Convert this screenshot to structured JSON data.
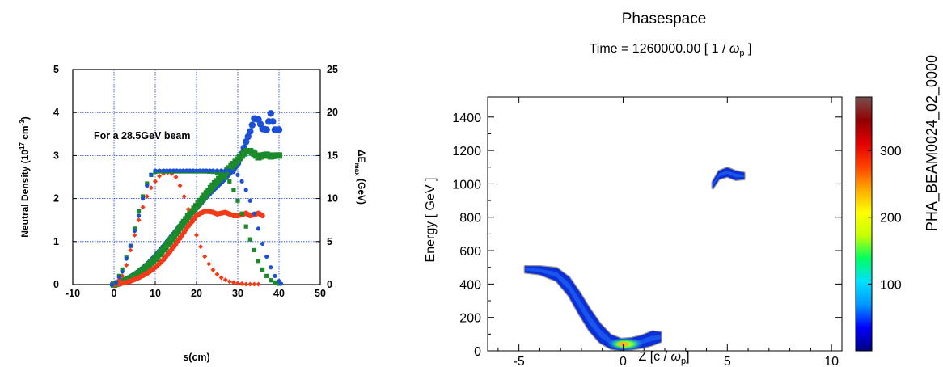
{
  "chart_data": [
    {
      "type": "scatter",
      "annotation": "For a 28.5GeV beam",
      "xlabel": "s(cm)",
      "ylabel_left": {
        "base": "Neutral Density (10",
        "sup": "17",
        "mid": " cm",
        "sup2": "-3",
        "end": ")"
      },
      "ylabel_right": {
        "base": "ΔE",
        "sub": "max",
        "end": " (GeV)"
      },
      "xlim": [
        -10,
        50
      ],
      "ylim_left": [
        0,
        5
      ],
      "ylim_right": [
        0,
        25
      ],
      "grid": true,
      "x_ticks": [
        "-10",
        "0",
        "10",
        "20",
        "30",
        "40",
        "50"
      ],
      "y_ticks_left": [
        "0",
        "1",
        "2",
        "3",
        "4",
        "5"
      ],
      "y_ticks_right": [
        "0",
        "5",
        "10",
        "15",
        "20",
        "25"
      ],
      "colors": {
        "blue": "#1a4fd6",
        "green": "#1a8a2a",
        "red": "#f23a1a"
      },
      "series": [
        {
          "axis": "left",
          "color": "blue",
          "marker": "circle-small",
          "x": [
            -0.5,
            0.5,
            2,
            4,
            6,
            7,
            8,
            9,
            10,
            12,
            16,
            20,
            24,
            26,
            28,
            29,
            30,
            31,
            32,
            33,
            34,
            35,
            36,
            37,
            38,
            39,
            40,
            40.5
          ],
          "y": [
            0,
            0.05,
            0.3,
            0.9,
            1.6,
            2.0,
            2.3,
            2.55,
            2.65,
            2.65,
            2.65,
            2.65,
            2.65,
            2.65,
            2.65,
            2.62,
            2.55,
            2.4,
            2.2,
            1.95,
            1.65,
            1.3,
            0.95,
            0.65,
            0.4,
            0.2,
            0.08,
            0.02
          ]
        },
        {
          "axis": "left",
          "color": "green",
          "marker": "square-small",
          "x": [
            -0.5,
            0.5,
            2,
            4,
            5,
            6,
            7,
            8,
            9,
            10,
            11,
            12,
            14,
            16,
            18,
            20,
            22,
            24,
            26,
            28,
            29,
            30,
            31,
            32,
            33,
            34,
            35,
            36,
            37,
            38,
            39,
            40
          ],
          "y": [
            0,
            0.05,
            0.35,
            0.9,
            1.3,
            1.7,
            2.05,
            2.35,
            2.55,
            2.62,
            2.63,
            2.63,
            2.63,
            2.63,
            2.63,
            2.63,
            2.63,
            2.62,
            2.58,
            2.4,
            2.2,
            1.95,
            1.65,
            1.35,
            1.05,
            0.8,
            0.55,
            0.35,
            0.2,
            0.1,
            0.05,
            0.02
          ]
        },
        {
          "axis": "left",
          "color": "red",
          "marker": "diamond-small",
          "x": [
            -0.5,
            0.5,
            2,
            3,
            4,
            5,
            6,
            7,
            8,
            9,
            10,
            11,
            12,
            13,
            14,
            15,
            16,
            17,
            18,
            19,
            20,
            21,
            22,
            23,
            24,
            25,
            26,
            27,
            28,
            29,
            30,
            31,
            32,
            33,
            34,
            35
          ],
          "y": [
            0,
            0.03,
            0.2,
            0.45,
            0.8,
            1.15,
            1.5,
            1.8,
            2.05,
            2.25,
            2.4,
            2.52,
            2.58,
            2.6,
            2.58,
            2.5,
            2.3,
            2.05,
            1.75,
            1.45,
            1.15,
            0.88,
            0.65,
            0.48,
            0.34,
            0.24,
            0.16,
            0.11,
            0.07,
            0.05,
            0.03,
            0.02,
            0.01,
            0.01,
            0.01,
            0.01
          ]
        },
        {
          "axis": "right",
          "color": "blue",
          "marker": "circle-large",
          "x": [
            0,
            2,
            4,
            6,
            8,
            10,
            12,
            14,
            16,
            18,
            20,
            22,
            24,
            26,
            28,
            29,
            30,
            31,
            32,
            33,
            34,
            35,
            36,
            37,
            38,
            39,
            40
          ],
          "y": [
            0,
            0.3,
            0.8,
            1.4,
            2.2,
            3.2,
            4.3,
            5.5,
            6.7,
            7.9,
            9.0,
            10.1,
            11.1,
            12.0,
            13.0,
            13.5,
            14.1,
            15.2,
            16.6,
            17.8,
            19.3,
            19.2,
            18.1,
            18.0,
            19.9,
            18.0,
            18.0
          ]
        },
        {
          "axis": "right",
          "color": "green",
          "marker": "square-large",
          "x": [
            0,
            2,
            4,
            6,
            8,
            10,
            12,
            14,
            16,
            18,
            20,
            22,
            24,
            26,
            27,
            28,
            29,
            30,
            31,
            32,
            33,
            34,
            35,
            36,
            37,
            38,
            39,
            40
          ],
          "y": [
            0,
            0.3,
            0.7,
            1.3,
            2.1,
            3.0,
            4.1,
            5.3,
            6.6,
            7.9,
            9.1,
            10.3,
            11.5,
            12.5,
            13.0,
            13.5,
            14.0,
            14.5,
            15.0,
            15.5,
            15.5,
            15.2,
            14.8,
            15.0,
            15.1,
            14.9,
            15.0,
            15.0
          ]
        },
        {
          "axis": "right",
          "color": "red",
          "marker": "circle-medium",
          "x": [
            0,
            2,
            4,
            6,
            8,
            10,
            12,
            14,
            16,
            18,
            19,
            20,
            21,
            22,
            23,
            24,
            25,
            26,
            27,
            28,
            29,
            30,
            31,
            32,
            33,
            34,
            35,
            36
          ],
          "y": [
            0,
            0.15,
            0.4,
            0.8,
            1.3,
            2.0,
            2.9,
            4.1,
            5.4,
            6.8,
            7.4,
            8.0,
            8.3,
            8.5,
            8.5,
            8.4,
            8.2,
            8.3,
            8.4,
            8.2,
            8.0,
            8.0,
            8.1,
            8.3,
            8.0,
            8.1,
            8.3,
            8.0
          ]
        }
      ]
    },
    {
      "type": "heatmap",
      "title": "Phasespace",
      "subtitle": {
        "pre": "Time = 1260000.00 [ 1 / ",
        "omega": "ω",
        "sub": "p",
        "post": " ]"
      },
      "xlabel": {
        "pre": "Z  [c / ",
        "omega": "ω",
        "sub": "p",
        "post": "]"
      },
      "ylabel": "Energy  [ GeV ]",
      "colorbar_label": "PHA_BEAM0024_02_0000",
      "xlim": [
        -6.5,
        10.5
      ],
      "ylim": [
        0,
        1520
      ],
      "x_ticks": [
        "-5",
        "0",
        "5",
        "10"
      ],
      "y_ticks": [
        "0",
        "200",
        "400",
        "600",
        "800",
        "1000",
        "1200",
        "1400"
      ],
      "colorbar_ticks": [
        "100",
        "200",
        "300"
      ],
      "colorbar_range": [
        0,
        380
      ],
      "colormap": [
        "#000080",
        "#0000ff",
        "#0096ff",
        "#00e0ff",
        "#00ff60",
        "#c8ff00",
        "#ffff00",
        "#ffaa00",
        "#ff4000",
        "#e00000",
        "#900000",
        "#7a5050"
      ],
      "main_band": [
        [
          -4.7,
          470,
          505
        ],
        [
          -4.0,
          460,
          505
        ],
        [
          -3.2,
          420,
          495
        ],
        [
          -2.6,
          330,
          440
        ],
        [
          -2.1,
          220,
          350
        ],
        [
          -1.6,
          120,
          250
        ],
        [
          -1.1,
          50,
          160
        ],
        [
          -0.6,
          15,
          95
        ],
        [
          -0.1,
          5,
          70
        ],
        [
          0.4,
          10,
          75
        ],
        [
          0.9,
          20,
          90
        ],
        [
          1.4,
          35,
          115
        ],
        [
          1.8,
          55,
          110
        ]
      ],
      "upper_blob": [
        [
          4.3,
          975,
          1010
        ],
        [
          4.6,
          1030,
          1075
        ],
        [
          5.0,
          1045,
          1095
        ],
        [
          5.4,
          1025,
          1075
        ],
        [
          5.8,
          1030,
          1065
        ]
      ],
      "hotspot": {
        "x": 0.1,
        "y": 40,
        "intensity": 200
      }
    }
  ]
}
